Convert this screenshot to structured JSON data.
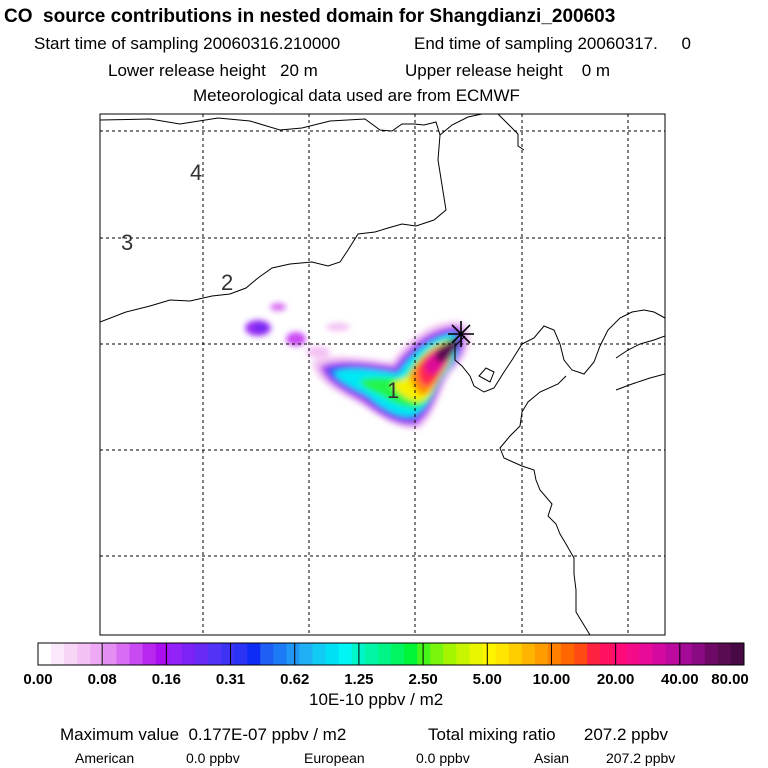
{
  "header": {
    "title": "CO  source contributions in nested domain for Shangdianzi_200603",
    "start_time": "Start time of sampling 20060316.210000",
    "end_time": "End time of sampling 20060317.     0",
    "lower_release": "Lower release height   20 m",
    "upper_release": "Upper release height    0 m",
    "met_source": "Meteorological data used are from ECMWF"
  },
  "map": {
    "contour_labels": [
      "4",
      "3",
      "2",
      "1"
    ],
    "receptor_marker": "cross-marker-icon"
  },
  "colorbar": {
    "tick_labels": [
      "0.00",
      "0.08",
      "0.16",
      "0.31",
      "0.62",
      "1.25",
      "2.50",
      "5.00",
      "10.00",
      "20.00",
      "40.00",
      "80.00"
    ],
    "unit_label": "10E-10 ppbv / m2",
    "colors": [
      "#ffffff",
      "#fbe9fb",
      "#f7d5f7",
      "#f3c1f3",
      "#eda9f3",
      "#e48ef3",
      "#d86cf3",
      "#c94af3",
      "#b927ef",
      "#a90ff0",
      "#9222f7",
      "#7d22f7",
      "#6a2af5",
      "#5333f5",
      "#3e33f5",
      "#2a33f5",
      "#0d2cf5",
      "#1f5ff5",
      "#1d7af5",
      "#2196f5",
      "#1fb0f5",
      "#12cbf5",
      "#00e0f5",
      "#00f5f5",
      "#00f5c8",
      "#00f5a6",
      "#00f586",
      "#00f560",
      "#00f537",
      "#46f51a",
      "#7af50c",
      "#a5f500",
      "#c8f500",
      "#eaf500",
      "#fff500",
      "#ffe600",
      "#ffce00",
      "#ffb500",
      "#ff9c00",
      "#ff8000",
      "#ff6600",
      "#ff4a14",
      "#ff2240",
      "#ff1060",
      "#ff0a78",
      "#f50a8a",
      "#e80a98",
      "#d40aa0",
      "#bc0a9e",
      "#a50a96",
      "#8a0a82",
      "#6e0a66",
      "#5a0c52",
      "#480a44"
    ]
  },
  "summary": {
    "max_value": "Maximum value  0.177E-07 ppbv / m2",
    "total_mixing": "Total mixing ratio      207.2 ppbv",
    "american_label": "American",
    "american_value": "0.0 ppbv",
    "european_label": "European",
    "european_value": "0.0 ppbv",
    "asian_label": "Asian",
    "asian_value": "207.2 ppbv"
  }
}
